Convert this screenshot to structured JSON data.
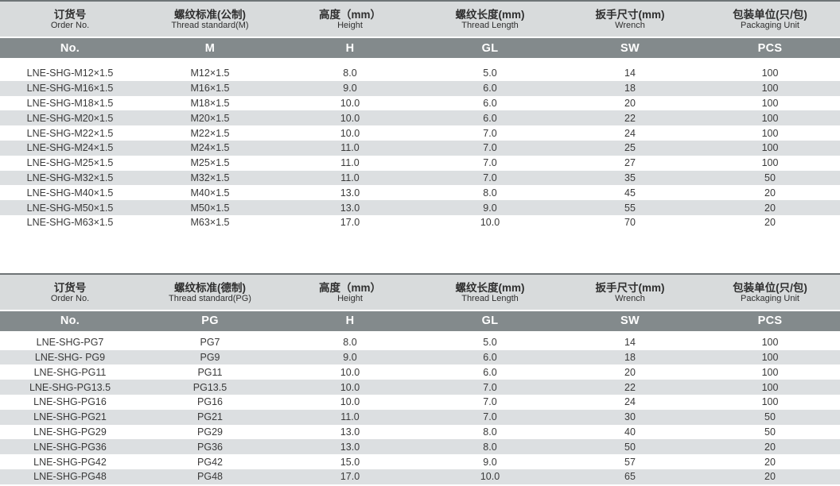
{
  "colors": {
    "header_band": "#d8dbdc",
    "code_band": "#838a8c",
    "stripe": "#dcdfe1",
    "top_rule": "#6e7476",
    "text": "#3a3a3a",
    "code_text": "#ffffff"
  },
  "tables": [
    {
      "name": "metric-thread-table",
      "columns": [
        {
          "zh": "订货号",
          "en": "Order No.",
          "code": "No."
        },
        {
          "zh": "螺纹标准(公制)",
          "en": "Thread standard(M)",
          "code": "M"
        },
        {
          "zh": "高度（mm）",
          "en": "Height",
          "code": "H"
        },
        {
          "zh": "螺纹长度(mm)",
          "en": "Thread Length",
          "code": "GL"
        },
        {
          "zh": "扳手尺寸(mm)",
          "en": "Wrench",
          "code": "SW"
        },
        {
          "zh": "包装单位(只/包)",
          "en": "Packaging Unit",
          "code": "PCS"
        }
      ],
      "rows": [
        [
          "LNE-SHG-M12×1.5",
          "M12×1.5",
          "8.0",
          "5.0",
          "14",
          "100"
        ],
        [
          "LNE-SHG-M16×1.5",
          "M16×1.5",
          "9.0",
          "6.0",
          "18",
          "100"
        ],
        [
          "LNE-SHG-M18×1.5",
          "M18×1.5",
          "10.0",
          "6.0",
          "20",
          "100"
        ],
        [
          "LNE-SHG-M20×1.5",
          "M20×1.5",
          "10.0",
          "6.0",
          "22",
          "100"
        ],
        [
          "LNE-SHG-M22×1.5",
          "M22×1.5",
          "10.0",
          "7.0",
          "24",
          "100"
        ],
        [
          "LNE-SHG-M24×1.5",
          "M24×1.5",
          "11.0",
          "7.0",
          "25",
          "100"
        ],
        [
          "LNE-SHG-M25×1.5",
          "M25×1.5",
          "11.0",
          "7.0",
          "27",
          "100"
        ],
        [
          "LNE-SHG-M32×1.5",
          "M32×1.5",
          "11.0",
          "7.0",
          "35",
          "50"
        ],
        [
          "LNE-SHG-M40×1.5",
          "M40×1.5",
          "13.0",
          "8.0",
          "45",
          "20"
        ],
        [
          "LNE-SHG-M50×1.5",
          "M50×1.5",
          "13.0",
          "9.0",
          "55",
          "20"
        ],
        [
          "LNE-SHG-M63×1.5",
          "M63×1.5",
          "17.0",
          "10.0",
          "70",
          "20"
        ]
      ]
    },
    {
      "name": "pg-thread-table",
      "columns": [
        {
          "zh": "订货号",
          "en": "Order No.",
          "code": "No."
        },
        {
          "zh": "螺纹标准(德制)",
          "en": "Thread standard(PG)",
          "code": "PG"
        },
        {
          "zh": "高度（mm）",
          "en": "Height",
          "code": "H"
        },
        {
          "zh": "螺纹长度(mm)",
          "en": "Thread Length",
          "code": "GL"
        },
        {
          "zh": "扳手尺寸(mm)",
          "en": "Wrench",
          "code": "SW"
        },
        {
          "zh": "包装单位(只/包)",
          "en": "Packaging Unit",
          "code": "PCS"
        }
      ],
      "rows": [
        [
          "LNE-SHG-PG7",
          "PG7",
          "8.0",
          "5.0",
          "14",
          "100"
        ],
        [
          "LNE-SHG- PG9",
          "PG9",
          "9.0",
          "6.0",
          "18",
          "100"
        ],
        [
          "LNE-SHG-PG11",
          "PG11",
          "10.0",
          "6.0",
          "20",
          "100"
        ],
        [
          "LNE-SHG-PG13.5",
          "PG13.5",
          "10.0",
          "7.0",
          "22",
          "100"
        ],
        [
          "LNE-SHG-PG16",
          "PG16",
          "10.0",
          "7.0",
          "24",
          "100"
        ],
        [
          "LNE-SHG-PG21",
          "PG21",
          "11.0",
          "7.0",
          "30",
          "50"
        ],
        [
          "LNE-SHG-PG29",
          "PG29",
          "13.0",
          "8.0",
          "40",
          "50"
        ],
        [
          "LNE-SHG-PG36",
          "PG36",
          "13.0",
          "8.0",
          "50",
          "20"
        ],
        [
          "LNE-SHG-PG42",
          "PG42",
          "15.0",
          "9.0",
          "57",
          "20"
        ],
        [
          "LNE-SHG-PG48",
          "PG48",
          "17.0",
          "10.0",
          "65",
          "20"
        ]
      ]
    }
  ]
}
